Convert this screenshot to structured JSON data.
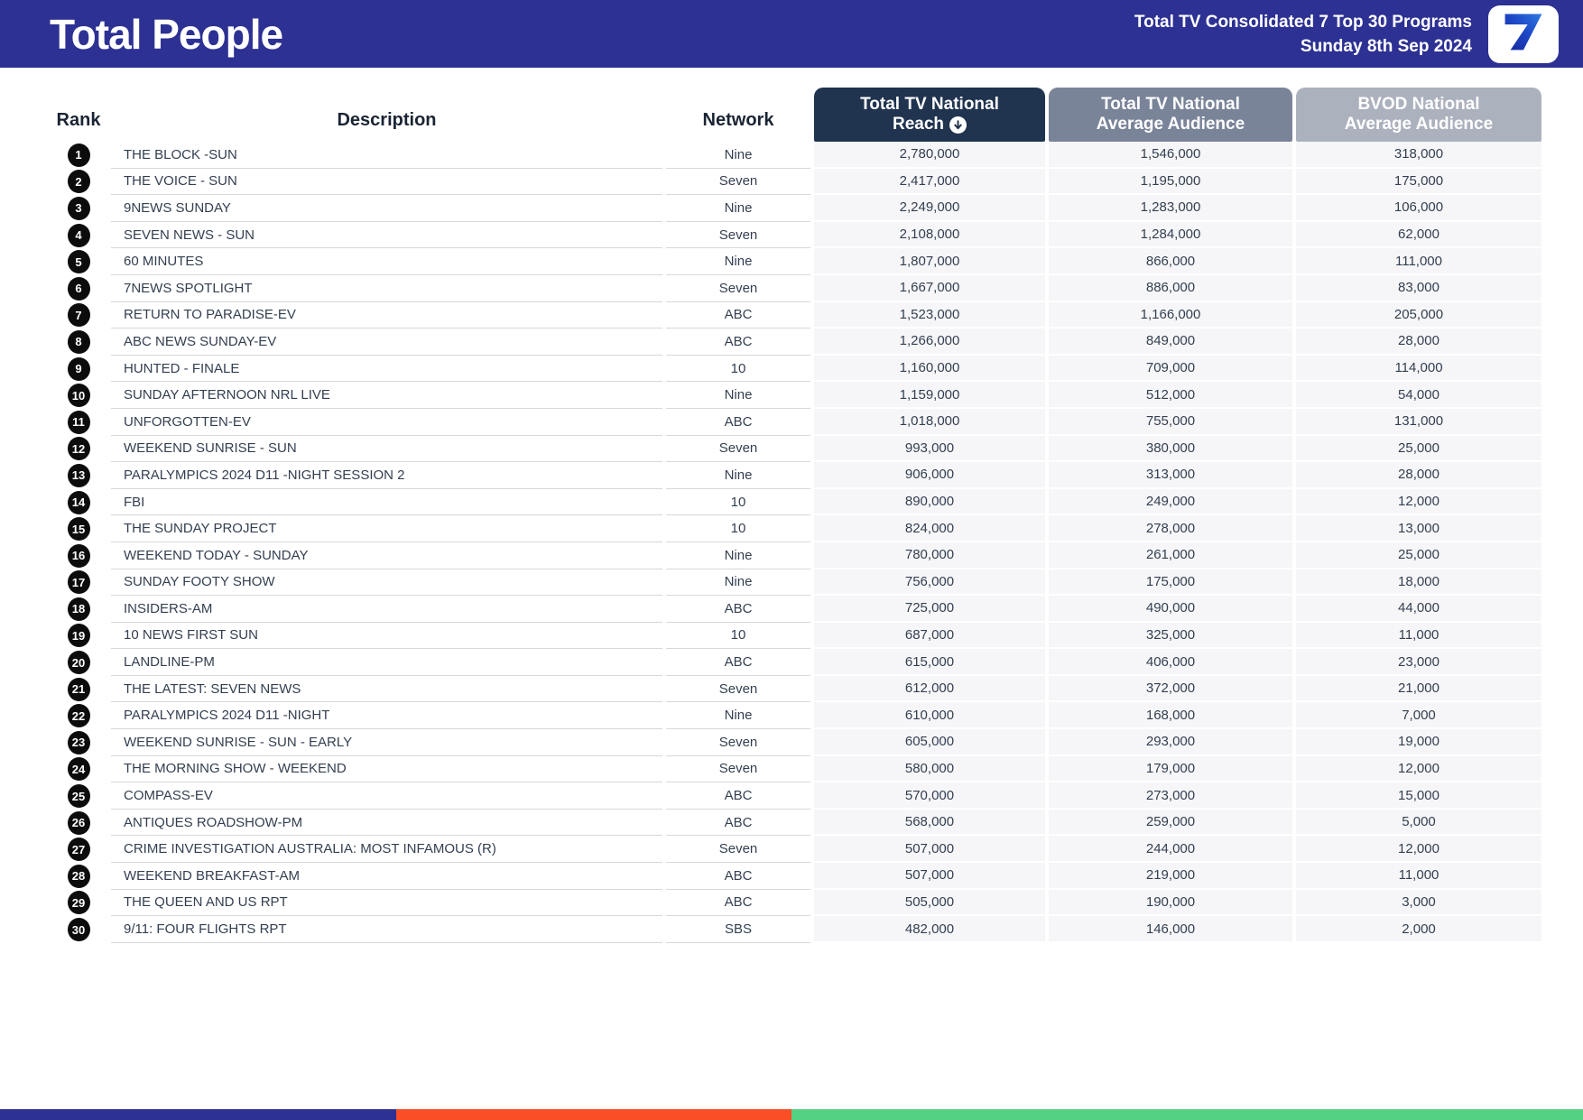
{
  "header": {
    "title": "Total People",
    "report_line1": "Total TV Consolidated 7 Top 30 Programs",
    "report_line2": "Sunday 8th Sep 2024",
    "logo_icon": "seven-network-7-icon",
    "colors": {
      "band_bg": "#2d3193",
      "logo_bg": "#ffffff",
      "logo_7_light": "#2f7ae2",
      "logo_7_dark": "#18289a"
    }
  },
  "table": {
    "plain_headers": {
      "rank": "Rank",
      "description": "Description",
      "network": "Network"
    },
    "header_boxes": [
      {
        "line1": "Total TV National",
        "line2": "Reach",
        "sorted_desc": true,
        "bg": "#20334f"
      },
      {
        "line1": "Total TV National",
        "line2": "Average Audience",
        "sorted_desc": false,
        "bg": "#7a8499"
      },
      {
        "line1": "BVOD National",
        "line2": "Average Audience",
        "sorted_desc": false,
        "bg": "#abb1bd"
      }
    ],
    "rows": [
      {
        "rank": "1",
        "description": "THE BLOCK -SUN",
        "network": "Nine",
        "reach": "2,780,000",
        "avg_audience": "1,546,000",
        "bvod_audience": "318,000"
      },
      {
        "rank": "2",
        "description": "THE VOICE - SUN",
        "network": "Seven",
        "reach": "2,417,000",
        "avg_audience": "1,195,000",
        "bvod_audience": "175,000"
      },
      {
        "rank": "3",
        "description": "9NEWS SUNDAY",
        "network": "Nine",
        "reach": "2,249,000",
        "avg_audience": "1,283,000",
        "bvod_audience": "106,000"
      },
      {
        "rank": "4",
        "description": "SEVEN NEWS - SUN",
        "network": "Seven",
        "reach": "2,108,000",
        "avg_audience": "1,284,000",
        "bvod_audience": "62,000"
      },
      {
        "rank": "5",
        "description": "60 MINUTES",
        "network": "Nine",
        "reach": "1,807,000",
        "avg_audience": "866,000",
        "bvod_audience": "111,000"
      },
      {
        "rank": "6",
        "description": "7NEWS SPOTLIGHT",
        "network": "Seven",
        "reach": "1,667,000",
        "avg_audience": "886,000",
        "bvod_audience": "83,000"
      },
      {
        "rank": "7",
        "description": "RETURN TO PARADISE-EV",
        "network": "ABC",
        "reach": "1,523,000",
        "avg_audience": "1,166,000",
        "bvod_audience": "205,000"
      },
      {
        "rank": "8",
        "description": "ABC NEWS SUNDAY-EV",
        "network": "ABC",
        "reach": "1,266,000",
        "avg_audience": "849,000",
        "bvod_audience": "28,000"
      },
      {
        "rank": "9",
        "description": "HUNTED - FINALE",
        "network": "10",
        "reach": "1,160,000",
        "avg_audience": "709,000",
        "bvod_audience": "114,000"
      },
      {
        "rank": "10",
        "description": "SUNDAY AFTERNOON NRL LIVE",
        "network": "Nine",
        "reach": "1,159,000",
        "avg_audience": "512,000",
        "bvod_audience": "54,000"
      },
      {
        "rank": "11",
        "description": "UNFORGOTTEN-EV",
        "network": "ABC",
        "reach": "1,018,000",
        "avg_audience": "755,000",
        "bvod_audience": "131,000"
      },
      {
        "rank": "12",
        "description": "WEEKEND SUNRISE - SUN",
        "network": "Seven",
        "reach": "993,000",
        "avg_audience": "380,000",
        "bvod_audience": "25,000"
      },
      {
        "rank": "13",
        "description": "PARALYMPICS 2024 D11 -NIGHT SESSION 2",
        "network": "Nine",
        "reach": "906,000",
        "avg_audience": "313,000",
        "bvod_audience": "28,000"
      },
      {
        "rank": "14",
        "description": "FBI",
        "network": "10",
        "reach": "890,000",
        "avg_audience": "249,000",
        "bvod_audience": "12,000"
      },
      {
        "rank": "15",
        "description": "THE SUNDAY PROJECT",
        "network": "10",
        "reach": "824,000",
        "avg_audience": "278,000",
        "bvod_audience": "13,000"
      },
      {
        "rank": "16",
        "description": "WEEKEND TODAY - SUNDAY",
        "network": "Nine",
        "reach": "780,000",
        "avg_audience": "261,000",
        "bvod_audience": "25,000"
      },
      {
        "rank": "17",
        "description": "SUNDAY FOOTY SHOW",
        "network": "Nine",
        "reach": "756,000",
        "avg_audience": "175,000",
        "bvod_audience": "18,000"
      },
      {
        "rank": "18",
        "description": "INSIDERS-AM",
        "network": "ABC",
        "reach": "725,000",
        "avg_audience": "490,000",
        "bvod_audience": "44,000"
      },
      {
        "rank": "19",
        "description": "10 NEWS FIRST SUN",
        "network": "10",
        "reach": "687,000",
        "avg_audience": "325,000",
        "bvod_audience": "11,000"
      },
      {
        "rank": "20",
        "description": "LANDLINE-PM",
        "network": "ABC",
        "reach": "615,000",
        "avg_audience": "406,000",
        "bvod_audience": "23,000"
      },
      {
        "rank": "21",
        "description": "THE LATEST: SEVEN NEWS",
        "network": "Seven",
        "reach": "612,000",
        "avg_audience": "372,000",
        "bvod_audience": "21,000"
      },
      {
        "rank": "22",
        "description": "PARALYMPICS 2024 D11 -NIGHT",
        "network": "Nine",
        "reach": "610,000",
        "avg_audience": "168,000",
        "bvod_audience": "7,000"
      },
      {
        "rank": "23",
        "description": "WEEKEND SUNRISE - SUN - EARLY",
        "network": "Seven",
        "reach": "605,000",
        "avg_audience": "293,000",
        "bvod_audience": "19,000"
      },
      {
        "rank": "24",
        "description": "THE MORNING SHOW - WEEKEND",
        "network": "Seven",
        "reach": "580,000",
        "avg_audience": "179,000",
        "bvod_audience": "12,000"
      },
      {
        "rank": "25",
        "description": "COMPASS-EV",
        "network": "ABC",
        "reach": "570,000",
        "avg_audience": "273,000",
        "bvod_audience": "15,000"
      },
      {
        "rank": "26",
        "description": "ANTIQUES ROADSHOW-PM",
        "network": "ABC",
        "reach": "568,000",
        "avg_audience": "259,000",
        "bvod_audience": "5,000"
      },
      {
        "rank": "27",
        "description": "CRIME INVESTIGATION AUSTRALIA: MOST INFAMOUS (R)",
        "network": "Seven",
        "reach": "507,000",
        "avg_audience": "244,000",
        "bvod_audience": "12,000"
      },
      {
        "rank": "28",
        "description": "WEEKEND BREAKFAST-AM",
        "network": "ABC",
        "reach": "507,000",
        "avg_audience": "219,000",
        "bvod_audience": "11,000"
      },
      {
        "rank": "29",
        "description": "THE QUEEN AND US RPT",
        "network": "ABC",
        "reach": "505,000",
        "avg_audience": "190,000",
        "bvod_audience": "3,000"
      },
      {
        "rank": "30",
        "description": "9/11: FOUR FLIGHTS RPT",
        "network": "SBS",
        "reach": "482,000",
        "avg_audience": "146,000",
        "bvod_audience": "2,000"
      }
    ]
  },
  "footer_bar": {
    "segments": [
      {
        "name": "blue",
        "color": "#2d3193",
        "width": "25%"
      },
      {
        "name": "orange",
        "color": "#f94e26",
        "width": "25%"
      },
      {
        "name": "green",
        "color": "#54d183",
        "width": "50%"
      }
    ]
  }
}
